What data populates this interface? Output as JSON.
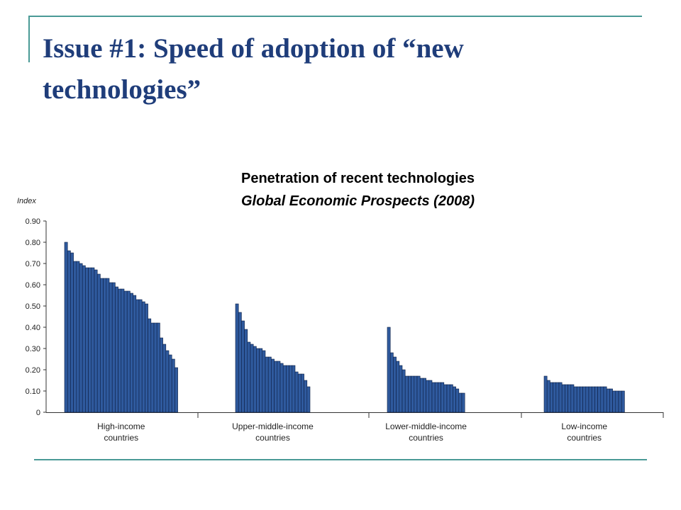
{
  "slide": {
    "title": "Issue #1: Speed of adoption of “new technologies”"
  },
  "chart_data": {
    "type": "bar",
    "title": "Penetration of recent technologies",
    "subtitle": "Global Economic Prospects (2008)",
    "ylabel": "Index",
    "ylim": [
      0,
      0.9
    ],
    "yticks": [
      "0",
      "0.10",
      "0.20",
      "0.30",
      "0.40",
      "0.50",
      "0.60",
      "0.70",
      "0.80",
      "0.90"
    ],
    "bar_color": "#2f5a9e",
    "grid": false,
    "groups": [
      {
        "label": [
          "High-income",
          "countries"
        ],
        "values": [
          0.8,
          0.76,
          0.75,
          0.71,
          0.71,
          0.7,
          0.69,
          0.68,
          0.68,
          0.68,
          0.67,
          0.65,
          0.63,
          0.63,
          0.63,
          0.61,
          0.61,
          0.59,
          0.58,
          0.58,
          0.57,
          0.57,
          0.56,
          0.55,
          0.53,
          0.53,
          0.52,
          0.51,
          0.44,
          0.42,
          0.42,
          0.42,
          0.35,
          0.32,
          0.29,
          0.27,
          0.25,
          0.21
        ]
      },
      {
        "label": [
          "Upper-middle-income",
          "countries"
        ],
        "values": [
          0.51,
          0.47,
          0.43,
          0.39,
          0.33,
          0.32,
          0.31,
          0.3,
          0.3,
          0.29,
          0.26,
          0.26,
          0.25,
          0.24,
          0.24,
          0.23,
          0.22,
          0.22,
          0.22,
          0.22,
          0.19,
          0.18,
          0.18,
          0.15,
          0.12
        ]
      },
      {
        "label": [
          "Lower-middle-income",
          "countries"
        ],
        "values": [
          0.4,
          0.28,
          0.26,
          0.24,
          0.22,
          0.2,
          0.17,
          0.17,
          0.17,
          0.17,
          0.17,
          0.16,
          0.16,
          0.15,
          0.15,
          0.14,
          0.14,
          0.14,
          0.14,
          0.13,
          0.13,
          0.13,
          0.12,
          0.11,
          0.09,
          0.09
        ]
      },
      {
        "label": [
          "Low-income",
          "countries"
        ],
        "values": [
          0.17,
          0.15,
          0.14,
          0.14,
          0.14,
          0.14,
          0.13,
          0.13,
          0.13,
          0.13,
          0.12,
          0.12,
          0.12,
          0.12,
          0.12,
          0.12,
          0.12,
          0.12,
          0.12,
          0.12,
          0.12,
          0.11,
          0.11,
          0.1,
          0.1,
          0.1,
          0.1
        ]
      }
    ]
  }
}
